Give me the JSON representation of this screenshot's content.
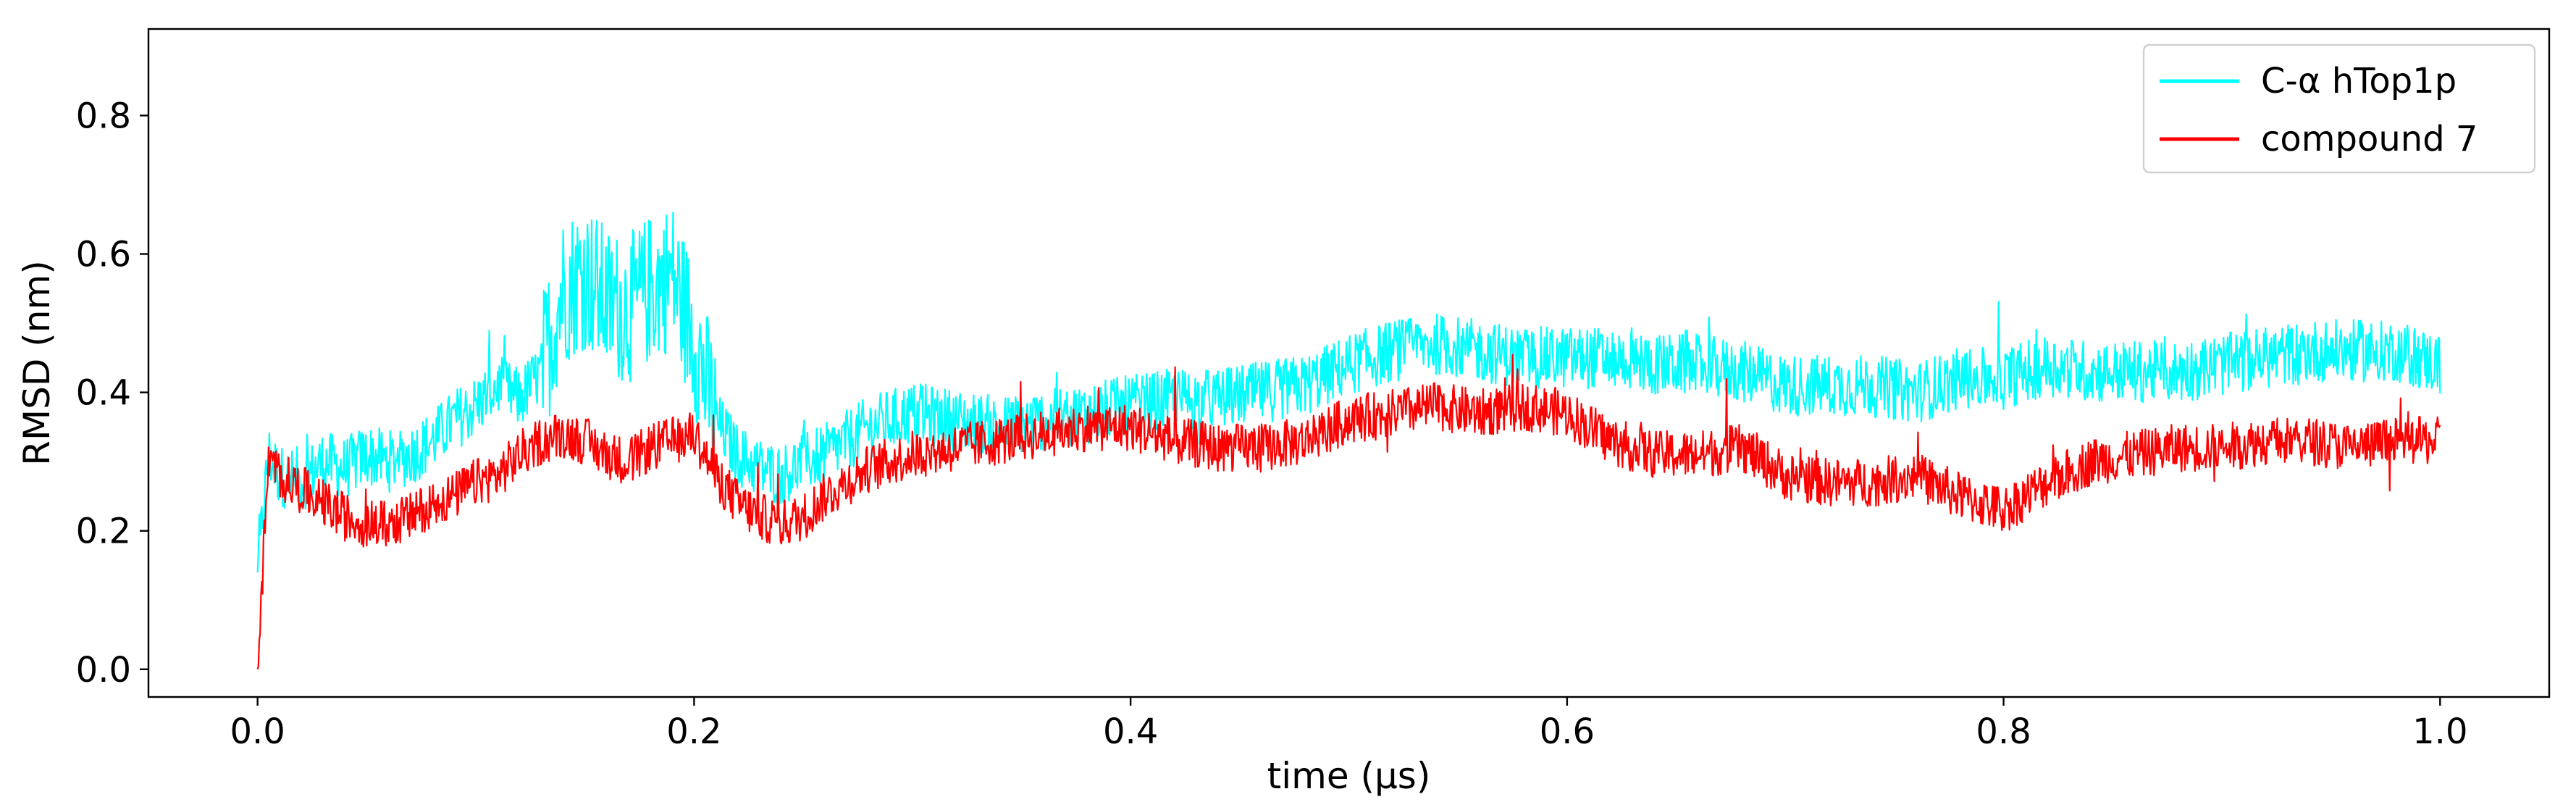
{
  "chart_data": {
    "type": "line",
    "title": "",
    "xlabel": "time (μs)",
    "ylabel": "RMSD (nm)",
    "xlim": [
      -0.05,
      1.05
    ],
    "ylim": [
      -0.04,
      0.925
    ],
    "xticks": [
      0.0,
      0.2,
      0.4,
      0.6,
      0.8,
      1.0
    ],
    "xtick_labels": [
      "0.0",
      "0.2",
      "0.4",
      "0.6",
      "0.8",
      "1.0"
    ],
    "yticks": [
      0.0,
      0.2,
      0.4,
      0.6,
      0.8
    ],
    "ytick_labels": [
      "0.0",
      "0.2",
      "0.4",
      "0.6",
      "0.8"
    ],
    "grid": false,
    "legend_position": "top-right",
    "series": [
      {
        "name": "C-α hTop1p",
        "color": "#00ffff",
        "x": [
          0.0,
          0.005,
          0.01,
          0.02,
          0.03,
          0.04,
          0.05,
          0.06,
          0.07,
          0.08,
          0.09,
          0.1,
          0.11,
          0.12,
          0.13,
          0.14,
          0.15,
          0.16,
          0.17,
          0.18,
          0.19,
          0.2,
          0.21,
          0.22,
          0.23,
          0.24,
          0.25,
          0.26,
          0.27,
          0.28,
          0.29,
          0.3,
          0.32,
          0.34,
          0.36,
          0.38,
          0.4,
          0.42,
          0.44,
          0.46,
          0.48,
          0.5,
          0.52,
          0.54,
          0.56,
          0.58,
          0.6,
          0.62,
          0.64,
          0.66,
          0.68,
          0.7,
          0.72,
          0.74,
          0.76,
          0.78,
          0.8,
          0.82,
          0.84,
          0.86,
          0.88,
          0.9,
          0.92,
          0.94,
          0.96,
          0.98,
          1.0
        ],
        "y": [
          0.14,
          0.31,
          0.28,
          0.27,
          0.3,
          0.29,
          0.31,
          0.3,
          0.31,
          0.33,
          0.36,
          0.38,
          0.41,
          0.39,
          0.43,
          0.55,
          0.57,
          0.53,
          0.52,
          0.55,
          0.57,
          0.48,
          0.36,
          0.31,
          0.29,
          0.28,
          0.3,
          0.31,
          0.33,
          0.35,
          0.36,
          0.37,
          0.36,
          0.35,
          0.36,
          0.37,
          0.38,
          0.39,
          0.39,
          0.4,
          0.41,
          0.44,
          0.46,
          0.47,
          0.46,
          0.45,
          0.45,
          0.45,
          0.44,
          0.44,
          0.43,
          0.41,
          0.41,
          0.41,
          0.4,
          0.42,
          0.42,
          0.44,
          0.43,
          0.43,
          0.43,
          0.44,
          0.45,
          0.46,
          0.46,
          0.46,
          0.44
        ]
      },
      {
        "name": "compound 7",
        "color": "#ff0000",
        "x": [
          0.0,
          0.005,
          0.01,
          0.02,
          0.03,
          0.04,
          0.05,
          0.06,
          0.07,
          0.08,
          0.09,
          0.1,
          0.11,
          0.12,
          0.13,
          0.14,
          0.15,
          0.16,
          0.17,
          0.18,
          0.19,
          0.2,
          0.21,
          0.22,
          0.23,
          0.24,
          0.25,
          0.26,
          0.27,
          0.28,
          0.29,
          0.3,
          0.32,
          0.34,
          0.36,
          0.38,
          0.4,
          0.42,
          0.44,
          0.46,
          0.48,
          0.5,
          0.52,
          0.54,
          0.56,
          0.58,
          0.6,
          0.62,
          0.64,
          0.66,
          0.68,
          0.7,
          0.72,
          0.74,
          0.76,
          0.78,
          0.8,
          0.82,
          0.84,
          0.86,
          0.88,
          0.9,
          0.92,
          0.94,
          0.96,
          0.98,
          1.0
        ],
        "y": [
          0.0,
          0.3,
          0.28,
          0.26,
          0.24,
          0.22,
          0.21,
          0.21,
          0.22,
          0.24,
          0.25,
          0.27,
          0.28,
          0.31,
          0.33,
          0.34,
          0.33,
          0.31,
          0.3,
          0.32,
          0.33,
          0.34,
          0.28,
          0.24,
          0.22,
          0.21,
          0.22,
          0.25,
          0.27,
          0.29,
          0.3,
          0.31,
          0.32,
          0.33,
          0.34,
          0.35,
          0.35,
          0.33,
          0.32,
          0.32,
          0.33,
          0.36,
          0.37,
          0.38,
          0.37,
          0.38,
          0.37,
          0.33,
          0.31,
          0.31,
          0.32,
          0.28,
          0.27,
          0.27,
          0.28,
          0.25,
          0.23,
          0.27,
          0.3,
          0.31,
          0.32,
          0.32,
          0.33,
          0.33,
          0.32,
          0.33,
          0.33
        ]
      }
    ]
  }
}
